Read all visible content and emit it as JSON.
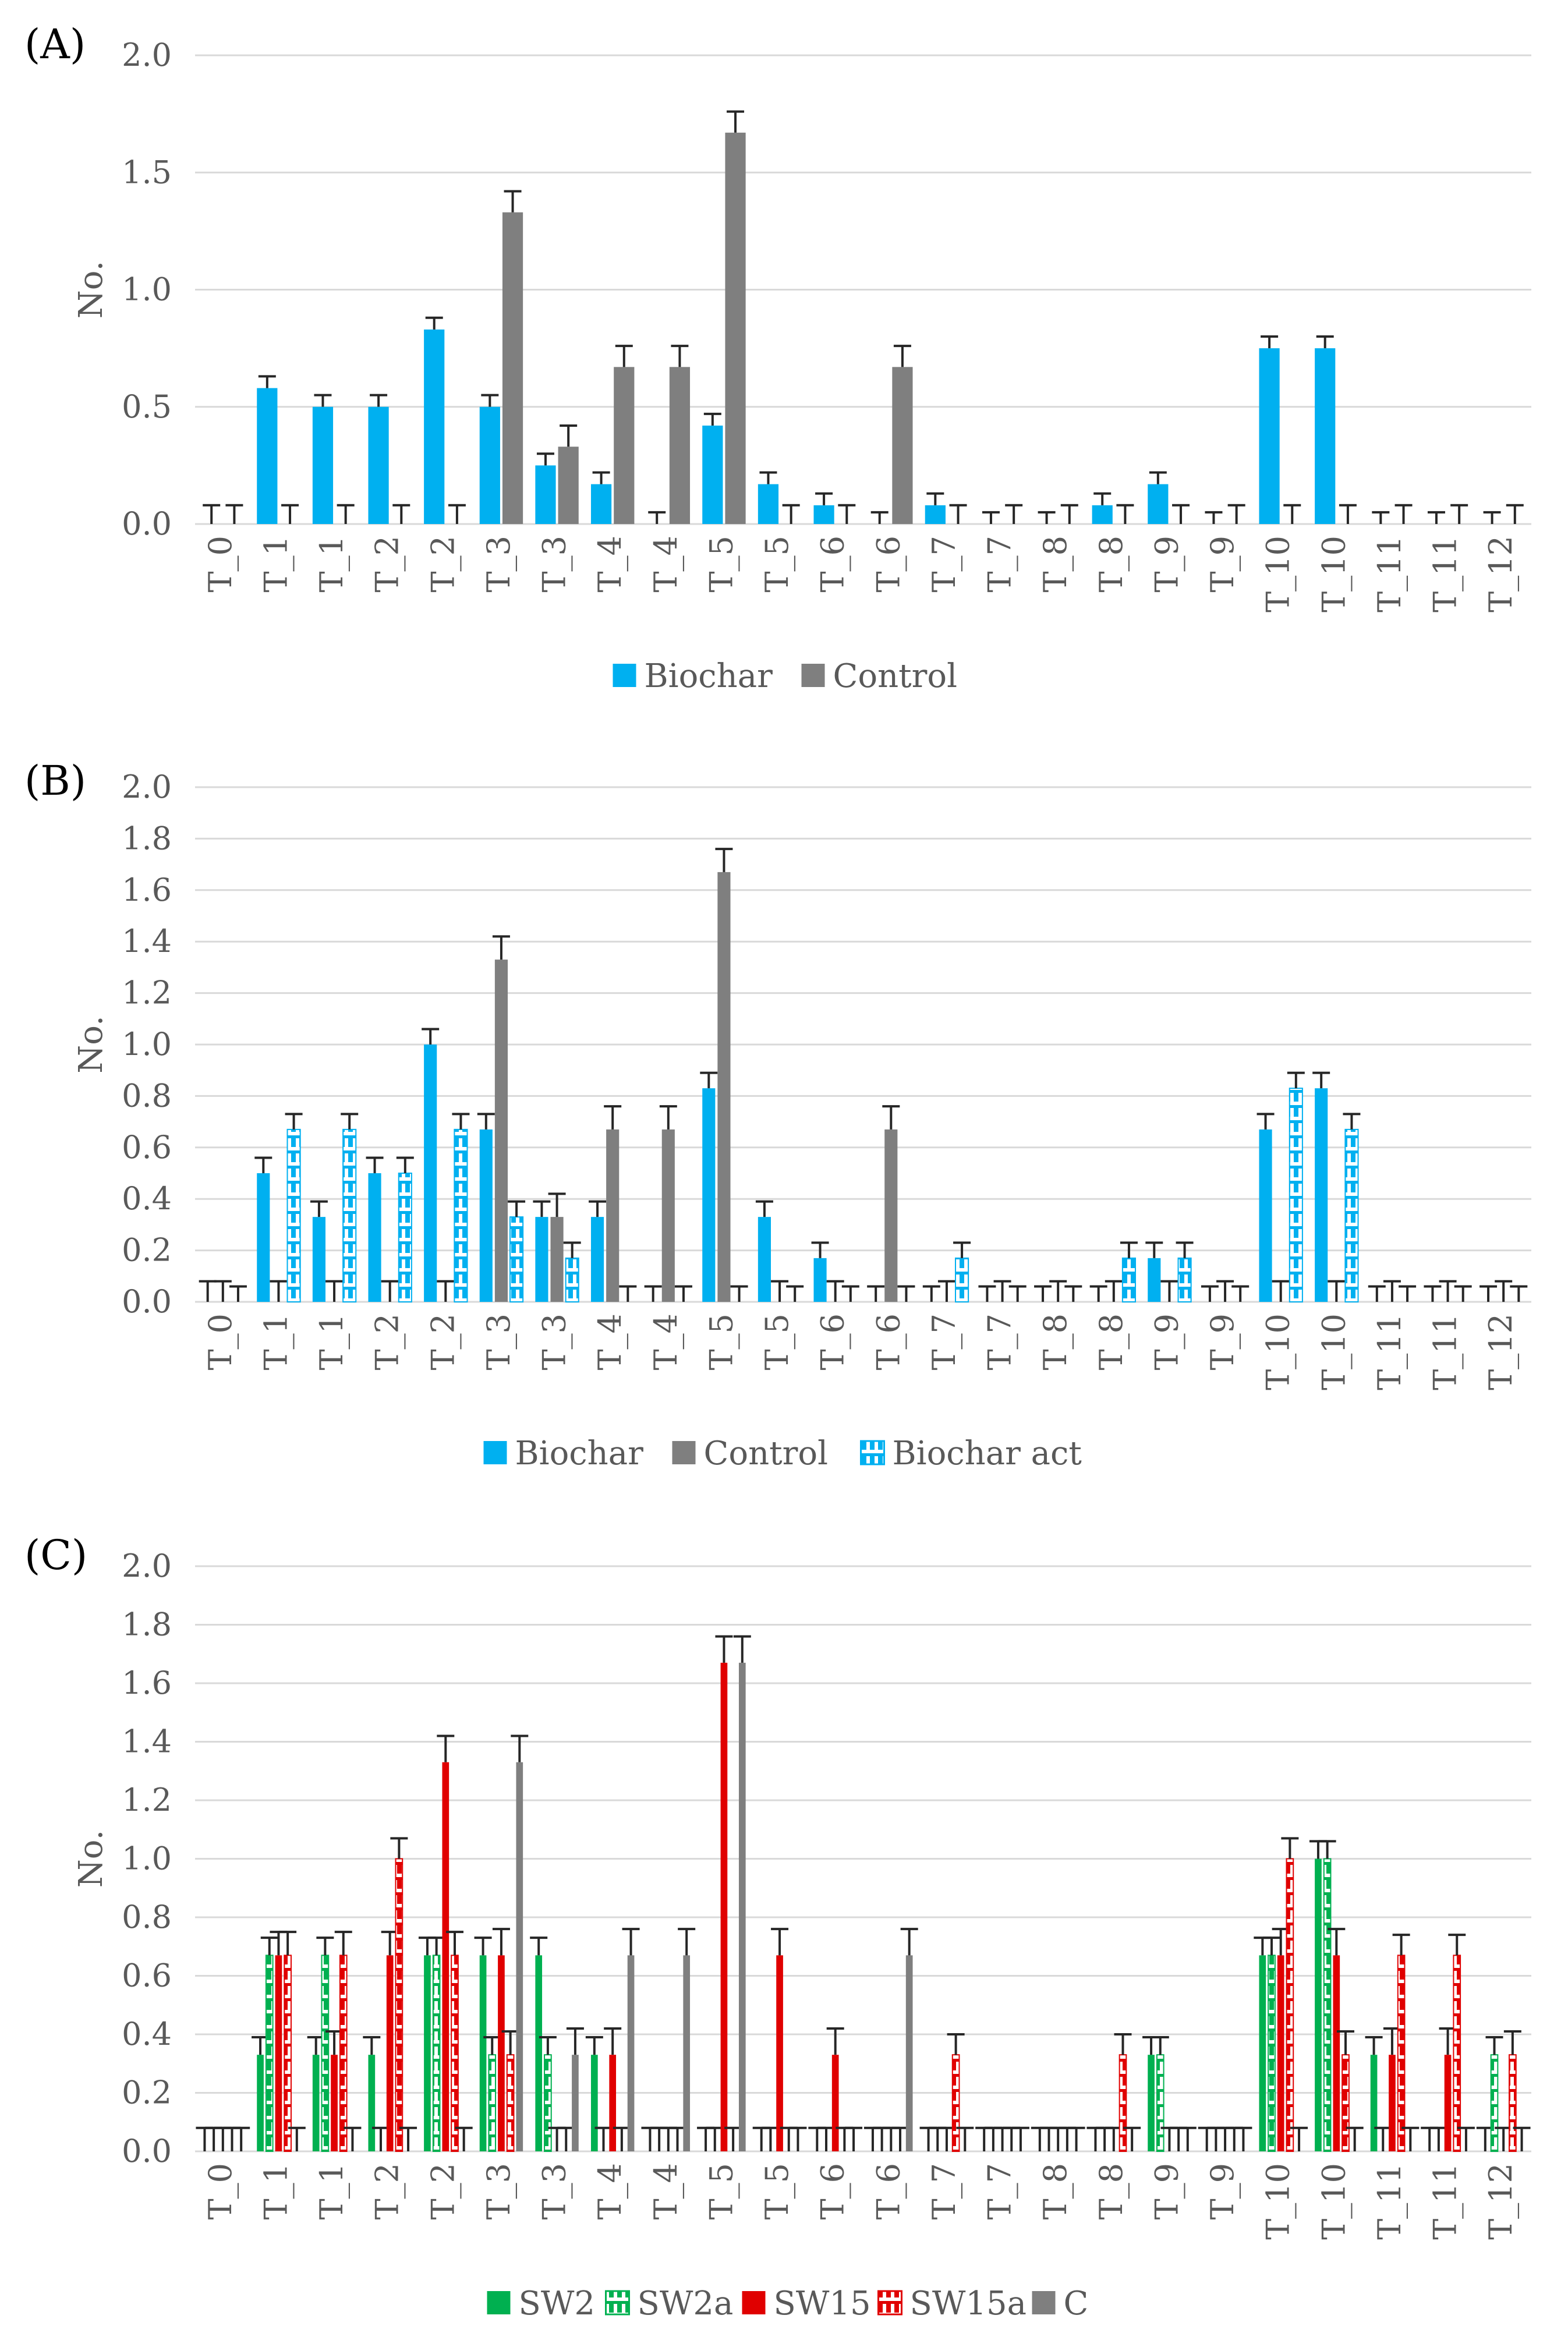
{
  "colors": {
    "biochar": "#00B0F0",
    "control": "#7F7F7F",
    "sw2": "#00B050",
    "sw15": "#E00000",
    "grid": "#D9D9D9",
    "text": "#595959",
    "error_bar": "#262626"
  },
  "chart_data": [
    {
      "panel": "(A)",
      "type": "bar",
      "ylabel": "No.",
      "ylim": [
        0,
        2.0
      ],
      "yticks": [
        "0.0",
        "0.5",
        "1.0",
        "1.5",
        "2.0"
      ],
      "categories": [
        "T_0",
        "T_1",
        "T_1",
        "T_2",
        "T_2",
        "T_3",
        "T_3",
        "T_4",
        "T_4",
        "T_5",
        "T_5",
        "T_6",
        "T_6",
        "T_7",
        "T_7",
        "T_8",
        "T_8",
        "T_9",
        "T_9",
        "T_10",
        "T_10",
        "T_11",
        "T_11",
        "T_12"
      ],
      "series": [
        {
          "name": "Biochar",
          "color": "#00B0F0",
          "pattern": "solid",
          "values": [
            0,
            0.58,
            0.5,
            0.5,
            0.83,
            0.5,
            0.25,
            0.17,
            0,
            0.42,
            0.17,
            0.08,
            0,
            0.08,
            0,
            0,
            0.08,
            0.17,
            0,
            0.75,
            0.75,
            0,
            0,
            0
          ],
          "errors": [
            0.08,
            0.05,
            0.05,
            0.05,
            0.05,
            0.05,
            0.05,
            0.05,
            0.05,
            0.05,
            0.05,
            0.05,
            0.05,
            0.05,
            0.05,
            0.05,
            0.05,
            0.05,
            0.05,
            0.05,
            0.05,
            0.05,
            0.05,
            0.05
          ]
        },
        {
          "name": "Control",
          "color": "#7F7F7F",
          "pattern": "solid",
          "values": [
            0,
            0,
            0,
            0,
            0,
            1.33,
            0.33,
            0.67,
            0.67,
            1.67,
            0,
            0,
            0.67,
            0,
            0,
            0,
            0,
            0,
            0,
            0,
            0,
            0,
            0,
            0
          ],
          "errors": [
            0.08,
            0.08,
            0.08,
            0.08,
            0.08,
            0.09,
            0.09,
            0.09,
            0.09,
            0.09,
            0.08,
            0.08,
            0.09,
            0.08,
            0.08,
            0.08,
            0.08,
            0.08,
            0.08,
            0.08,
            0.08,
            0.08,
            0.08,
            0.08
          ]
        }
      ]
    },
    {
      "panel": "(B)",
      "type": "bar",
      "ylabel": "No.",
      "ylim": [
        0,
        2.0
      ],
      "yticks": [
        "0.0",
        "0.2",
        "0.4",
        "0.6",
        "0.8",
        "1.0",
        "1.2",
        "1.4",
        "1.6",
        "1.8",
        "2.0"
      ],
      "categories": [
        "T_0",
        "T_1",
        "T_1",
        "T_2",
        "T_2",
        "T_3",
        "T_3",
        "T_4",
        "T_4",
        "T_5",
        "T_5",
        "T_6",
        "T_6",
        "T_7",
        "T_7",
        "T_8",
        "T_8",
        "T_9",
        "T_9",
        "T_10",
        "T_10",
        "T_11",
        "T_11",
        "T_12"
      ],
      "series": [
        {
          "name": "Biochar",
          "color": "#00B0F0",
          "pattern": "solid",
          "values": [
            0,
            0.5,
            0.33,
            0.5,
            1.0,
            0.67,
            0.33,
            0.33,
            0,
            0.83,
            0.33,
            0.17,
            0,
            0,
            0,
            0,
            0,
            0.17,
            0,
            0.67,
            0.83,
            0,
            0,
            0
          ],
          "errors": [
            0.08,
            0.06,
            0.06,
            0.06,
            0.06,
            0.06,
            0.06,
            0.06,
            0.06,
            0.06,
            0.06,
            0.06,
            0.06,
            0.06,
            0.06,
            0.06,
            0.06,
            0.06,
            0.06,
            0.06,
            0.06,
            0.06,
            0.06,
            0.06
          ]
        },
        {
          "name": "Control",
          "color": "#7F7F7F",
          "pattern": "solid",
          "values": [
            0,
            0,
            0,
            0,
            0,
            1.33,
            0.33,
            0.67,
            0.67,
            1.67,
            0,
            0,
            0.67,
            0,
            0,
            0,
            0,
            0,
            0,
            0,
            0,
            0,
            0,
            0
          ],
          "errors": [
            0.08,
            0.08,
            0.08,
            0.08,
            0.08,
            0.09,
            0.09,
            0.09,
            0.09,
            0.09,
            0.08,
            0.08,
            0.09,
            0.08,
            0.08,
            0.08,
            0.08,
            0.08,
            0.08,
            0.08,
            0.08,
            0.08,
            0.08,
            0.08
          ]
        },
        {
          "name": "Biochar act",
          "color": "#00B0F0",
          "pattern": "dashed",
          "values": [
            0,
            0.67,
            0.67,
            0.5,
            0.67,
            0.33,
            0.17,
            0,
            0,
            0,
            0,
            0,
            0,
            0.17,
            0,
            0,
            0.17,
            0.17,
            0,
            0.83,
            0.67,
            0,
            0,
            0
          ],
          "errors": [
            0.06,
            0.06,
            0.06,
            0.06,
            0.06,
            0.06,
            0.06,
            0.06,
            0.06,
            0.06,
            0.06,
            0.06,
            0.06,
            0.06,
            0.06,
            0.06,
            0.06,
            0.06,
            0.06,
            0.06,
            0.06,
            0.06,
            0.06,
            0.06
          ]
        }
      ]
    },
    {
      "panel": "(C)",
      "type": "bar",
      "ylabel": "No.",
      "ylim": [
        0,
        2.0
      ],
      "yticks": [
        "0.0",
        "0.2",
        "0.4",
        "0.6",
        "0.8",
        "1.0",
        "1.2",
        "1.4",
        "1.6",
        "1.8",
        "2.0"
      ],
      "categories": [
        "T_0",
        "T_1",
        "T_1",
        "T_2",
        "T_2",
        "T_3",
        "T_3",
        "T_4",
        "T_4",
        "T_5",
        "T_5",
        "T_6",
        "T_6",
        "T_7",
        "T_7",
        "T_8",
        "T_8",
        "T_9",
        "T_9",
        "T_10",
        "T_10",
        "T_11",
        "T_11",
        "T_12"
      ],
      "series": [
        {
          "name": "SW2",
          "color": "#00B050",
          "pattern": "solid",
          "values": [
            0,
            0.33,
            0.33,
            0.33,
            0.67,
            0.67,
            0.67,
            0.33,
            0,
            0,
            0,
            0,
            0,
            0,
            0,
            0,
            0,
            0.33,
            0,
            0.67,
            1.0,
            0.33,
            0,
            0
          ],
          "errors": [
            0.08,
            0.06,
            0.06,
            0.06,
            0.06,
            0.06,
            0.06,
            0.06,
            0.08,
            0.08,
            0.08,
            0.08,
            0.08,
            0.08,
            0.08,
            0.08,
            0.08,
            0.06,
            0.08,
            0.06,
            0.06,
            0.06,
            0.08,
            0.08
          ]
        },
        {
          "name": "SW2a",
          "color": "#00B050",
          "pattern": "dashed",
          "values": [
            0,
            0.67,
            0.67,
            0,
            0.67,
            0.33,
            0.33,
            0,
            0,
            0,
            0,
            0,
            0,
            0,
            0,
            0,
            0,
            0.33,
            0,
            0.67,
            1.0,
            0,
            0,
            0.33
          ],
          "errors": [
            0.08,
            0.06,
            0.06,
            0.08,
            0.06,
            0.06,
            0.06,
            0.08,
            0.08,
            0.08,
            0.08,
            0.08,
            0.08,
            0.08,
            0.08,
            0.08,
            0.08,
            0.06,
            0.08,
            0.06,
            0.06,
            0.08,
            0.08,
            0.06
          ]
        },
        {
          "name": "SW15",
          "color": "#E00000",
          "pattern": "solid",
          "values": [
            0,
            0.67,
            0.33,
            0.67,
            1.33,
            0.67,
            0,
            0.33,
            0,
            1.67,
            0.67,
            0.33,
            0,
            0,
            0,
            0,
            0,
            0,
            0,
            0.67,
            0.67,
            0.33,
            0.33,
            0
          ],
          "errors": [
            0.08,
            0.08,
            0.08,
            0.08,
            0.09,
            0.09,
            0.08,
            0.09,
            0.08,
            0.09,
            0.09,
            0.09,
            0.08,
            0.08,
            0.08,
            0.08,
            0.08,
            0.08,
            0.08,
            0.09,
            0.09,
            0.09,
            0.09,
            0.08
          ]
        },
        {
          "name": "SW15a",
          "color": "#E00000",
          "pattern": "dashed",
          "values": [
            0,
            0.67,
            0.67,
            1.0,
            0.67,
            0.33,
            0,
            0,
            0,
            0,
            0,
            0,
            0,
            0.33,
            0,
            0,
            0.33,
            0,
            0,
            1.0,
            0.33,
            0.67,
            0.67,
            0.33
          ],
          "errors": [
            0.08,
            0.08,
            0.08,
            0.07,
            0.08,
            0.08,
            0.08,
            0.08,
            0.08,
            0.08,
            0.08,
            0.08,
            0.08,
            0.07,
            0.08,
            0.08,
            0.07,
            0.08,
            0.08,
            0.07,
            0.08,
            0.07,
            0.07,
            0.08
          ]
        },
        {
          "name": "C",
          "color": "#7F7F7F",
          "pattern": "solid",
          "values": [
            0,
            0,
            0,
            0,
            0,
            1.33,
            0.33,
            0.67,
            0.67,
            1.67,
            0,
            0,
            0.67,
            0,
            0,
            0,
            0,
            0,
            0,
            0,
            0,
            0,
            0,
            0
          ],
          "errors": [
            0.08,
            0.08,
            0.08,
            0.08,
            0.08,
            0.09,
            0.09,
            0.09,
            0.09,
            0.09,
            0.08,
            0.08,
            0.09,
            0.08,
            0.08,
            0.08,
            0.08,
            0.08,
            0.08,
            0.08,
            0.08,
            0.08,
            0.08,
            0.08
          ]
        }
      ]
    }
  ]
}
